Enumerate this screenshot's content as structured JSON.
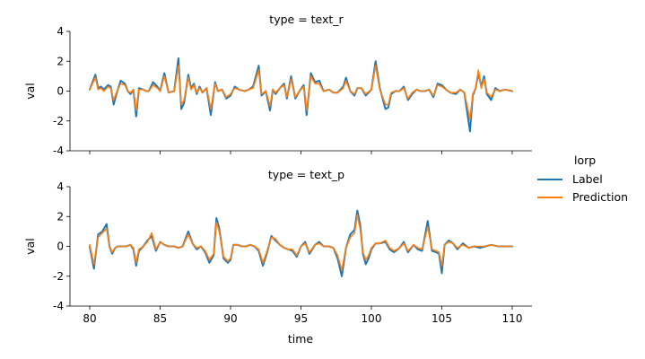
{
  "chart_data": {
    "type": "line",
    "x_range": [
      80,
      110
    ],
    "xlabel": "time",
    "ylabel": "val",
    "ylim": [
      -4,
      4
    ],
    "yticks": [
      -4,
      -2,
      0,
      2,
      4
    ],
    "xticks": [
      80,
      85,
      90,
      95,
      100,
      105,
      110
    ],
    "legend": {
      "title": "lorp",
      "placement": "right",
      "entries": [
        {
          "name": "Label",
          "color": "#1f77b4"
        },
        {
          "name": "Prediction",
          "color": "#ff7f0e"
        }
      ]
    },
    "panels": [
      {
        "title": "type = text_r",
        "series": [
          {
            "name": "Label",
            "color": "#1f77b4",
            "x": [
              80,
              80.4,
              80.6,
              80.8,
              81,
              81.3,
              81.5,
              81.7,
              81.9,
              82.2,
              82.5,
              82.7,
              82.9,
              83.1,
              83.3,
              83.5,
              83.8,
              84,
              84.2,
              84.5,
              84.8,
              85,
              85.3,
              85.6,
              86,
              86.3,
              86.5,
              86.7,
              87,
              87.2,
              87.4,
              87.6,
              87.8,
              88,
              88.3,
              88.6,
              88.9,
              89.1,
              89.4,
              89.7,
              90,
              90.3,
              90.6,
              91,
              91.3,
              91.6,
              92,
              92.2,
              92.5,
              92.8,
              93,
              93.2,
              93.5,
              93.8,
              94,
              94.3,
              94.6,
              94.9,
              95.2,
              95.4,
              95.7,
              96,
              96.3,
              96.6,
              97,
              97.3,
              97.6,
              98,
              98.2,
              98.5,
              98.8,
              99,
              99.3,
              99.6,
              100,
              100.3,
              100.6,
              101,
              101.2,
              101.4,
              101.7,
              102,
              102.3,
              102.6,
              102.9,
              103.2,
              103.5,
              103.8,
              104.1,
              104.4,
              104.7,
              105,
              105.3,
              105.6,
              106,
              106.3,
              106.6,
              107,
              107.2,
              107.4,
              107.6,
              107.8,
              108,
              108.2,
              108.5,
              108.8,
              109.1,
              109.5,
              110
            ],
            "y": [
              0.1,
              1.1,
              0.2,
              0.3,
              0.1,
              0.4,
              0.3,
              -0.9,
              -0.2,
              0.7,
              0.5,
              0,
              -0.2,
              0.1,
              -1.7,
              0.2,
              0.1,
              0,
              0,
              0.6,
              0.3,
              0,
              1.2,
              -0.1,
              0,
              2.2,
              -1.2,
              -0.8,
              1.1,
              0.2,
              0.5,
              -0.2,
              0.3,
              -0.1,
              0.2,
              -1.6,
              0.6,
              0,
              0.1,
              -0.5,
              -0.3,
              0.3,
              0.1,
              0,
              0.1,
              0.3,
              1.7,
              -0.3,
              0,
              -1.3,
              0.1,
              -0.2,
              0.2,
              0.5,
              -0.5,
              1,
              -0.5,
              0,
              0.4,
              -1.6,
              1.2,
              0.6,
              0.7,
              0,
              0.1,
              -0.1,
              -0.1,
              0.3,
              0.9,
              0,
              -0.3,
              0.2,
              0.2,
              -0.3,
              0.1,
              2,
              0.2,
              -1.2,
              -1.1,
              -0.2,
              0,
              0,
              0.3,
              -0.6,
              -0.2,
              0.1,
              0,
              0,
              0.1,
              -0.4,
              0.5,
              0.4,
              0.1,
              -0.1,
              -0.2,
              0.1,
              -0.1,
              -2.7,
              -0.3,
              0.2,
              1.2,
              0.3,
              1,
              -0.2,
              -0.6,
              0.2,
              0,
              0.1,
              0
            ]
          },
          {
            "name": "Prediction",
            "color": "#ff7f0e",
            "x": [
              80,
              80.4,
              80.6,
              80.8,
              81,
              81.3,
              81.5,
              81.7,
              81.9,
              82.2,
              82.5,
              82.7,
              82.9,
              83.1,
              83.3,
              83.5,
              83.8,
              84,
              84.2,
              84.5,
              84.8,
              85,
              85.3,
              85.6,
              86,
              86.3,
              86.5,
              86.7,
              87,
              87.2,
              87.4,
              87.6,
              87.8,
              88,
              88.3,
              88.6,
              88.9,
              89.1,
              89.4,
              89.7,
              90,
              90.3,
              90.6,
              91,
              91.3,
              91.6,
              92,
              92.2,
              92.5,
              92.8,
              93,
              93.2,
              93.5,
              93.8,
              94,
              94.3,
              94.6,
              94.9,
              95.2,
              95.4,
              95.7,
              96,
              96.3,
              96.6,
              97,
              97.3,
              97.6,
              98,
              98.2,
              98.5,
              98.8,
              99,
              99.3,
              99.6,
              100,
              100.3,
              100.6,
              101,
              101.2,
              101.4,
              101.7,
              102,
              102.3,
              102.6,
              102.9,
              103.2,
              103.5,
              103.8,
              104.1,
              104.4,
              104.7,
              105,
              105.3,
              105.6,
              106,
              106.3,
              106.6,
              107,
              107.2,
              107.4,
              107.6,
              107.8,
              108,
              108.2,
              108.5,
              108.8,
              109.1,
              109.5,
              110
            ],
            "y": [
              0.1,
              0.9,
              0.1,
              0.2,
              0,
              0.3,
              0.2,
              -0.6,
              -0.1,
              0.5,
              0.4,
              0,
              -0.1,
              0.1,
              -1.3,
              0.1,
              0.1,
              0,
              0,
              0.4,
              0.2,
              0,
              1,
              -0.1,
              0,
              1.7,
              -0.9,
              -0.6,
              0.9,
              0.1,
              0.4,
              -0.1,
              0.2,
              -0.1,
              0.2,
              -1.2,
              0.5,
              0,
              0.1,
              -0.4,
              -0.2,
              0.2,
              0.1,
              0,
              0.1,
              0.2,
              1.4,
              -0.2,
              0,
              -1,
              0.1,
              -0.1,
              0.2,
              0.4,
              -0.4,
              0.8,
              -0.4,
              0,
              0.3,
              -1.3,
              1,
              0.5,
              0.5,
              0,
              0.1,
              -0.1,
              -0.1,
              0.2,
              0.7,
              0,
              -0.2,
              0.2,
              0.2,
              -0.2,
              0.1,
              1.7,
              0.1,
              -0.9,
              -0.9,
              -0.1,
              0,
              0,
              0.2,
              -0.5,
              -0.1,
              0.1,
              0,
              0,
              0.1,
              -0.3,
              0.4,
              0.3,
              0.1,
              -0.1,
              -0.1,
              0.1,
              -0.1,
              -1.9,
              -0.2,
              0.2,
              1.4,
              0.2,
              0.8,
              -0.1,
              -0.4,
              0.1,
              0,
              0.1,
              0
            ]
          }
        ]
      },
      {
        "title": "type = text_p",
        "series": [
          {
            "name": "Label",
            "color": "#1f77b4",
            "x": [
              80,
              80.3,
              80.6,
              80.9,
              81.2,
              81.4,
              81.6,
              81.8,
              82,
              82.3,
              82.6,
              82.9,
              83.1,
              83.3,
              83.5,
              83.8,
              84.1,
              84.4,
              84.7,
              85,
              85.3,
              85.6,
              86,
              86.3,
              86.6,
              87,
              87.3,
              87.6,
              87.9,
              88.2,
              88.5,
              88.8,
              89,
              89.2,
              89.5,
              89.8,
              90,
              90.2,
              90.5,
              90.8,
              91.1,
              91.4,
              91.7,
              92,
              92.3,
              92.6,
              92.9,
              93.2,
              93.5,
              93.8,
              94.1,
              94.4,
              94.7,
              95,
              95.3,
              95.6,
              96,
              96.3,
              96.6,
              97,
              97.3,
              97.6,
              97.9,
              98.2,
              98.5,
              98.8,
              99,
              99.2,
              99.4,
              99.6,
              99.8,
              100,
              100.3,
              100.6,
              101,
              101.3,
              101.6,
              102,
              102.3,
              102.6,
              103,
              103.3,
              103.6,
              104,
              104.3,
              104.6,
              104.8,
              105,
              105.2,
              105.5,
              105.8,
              106.1,
              106.5,
              106.9,
              107.3,
              107.7,
              108.1,
              108.5,
              109,
              109.5,
              110
            ],
            "y": [
              0,
              -1.5,
              0.8,
              1,
              1.5,
              0,
              -0.5,
              -0.1,
              0,
              0,
              0,
              0.1,
              -0.2,
              -1.3,
              -0.3,
              0,
              0.4,
              0.7,
              -0.3,
              0.3,
              0.1,
              0,
              0,
              -0.1,
              0,
              1,
              0.2,
              -0.2,
              0,
              -0.4,
              -1.1,
              -0.6,
              1.9,
              1.2,
              -0.8,
              -1.1,
              -0.9,
              0.1,
              0.1,
              0,
              0,
              0.1,
              0,
              -0.3,
              -1.3,
              -0.4,
              0.7,
              0.4,
              0.1,
              -0.1,
              -0.2,
              -0.3,
              -0.7,
              0,
              0.3,
              -0.5,
              0.1,
              0.3,
              0,
              0,
              -0.1,
              -0.8,
              -2,
              -0.1,
              0.8,
              1.1,
              2.4,
              1.5,
              -0.5,
              -1.2,
              -0.8,
              -0.2,
              0.2,
              0.2,
              0.3,
              -0.2,
              -0.4,
              -0.1,
              0.3,
              -0.4,
              0.1,
              -0.2,
              -0.3,
              1.7,
              -0.3,
              -0.4,
              -0.5,
              -1.8,
              0.1,
              0.4,
              0.2,
              -0.2,
              0.2,
              -0.1,
              0,
              -0.1,
              0,
              0.1,
              0,
              0,
              0
            ]
          },
          {
            "name": "Prediction",
            "color": "#ff7f0e",
            "x": [
              80,
              80.3,
              80.6,
              80.9,
              81.2,
              81.4,
              81.6,
              81.8,
              82,
              82.3,
              82.6,
              82.9,
              83.1,
              83.3,
              83.5,
              83.8,
              84.1,
              84.4,
              84.7,
              85,
              85.3,
              85.6,
              86,
              86.3,
              86.6,
              87,
              87.3,
              87.6,
              87.9,
              88.2,
              88.5,
              88.8,
              89,
              89.2,
              89.5,
              89.8,
              90,
              90.2,
              90.5,
              90.8,
              91.1,
              91.4,
              91.7,
              92,
              92.3,
              92.6,
              92.9,
              93.2,
              93.5,
              93.8,
              94.1,
              94.4,
              94.7,
              95,
              95.3,
              95.6,
              96,
              96.3,
              96.6,
              97,
              97.3,
              97.6,
              97.9,
              98.2,
              98.5,
              98.8,
              99,
              99.2,
              99.4,
              99.6,
              99.8,
              100,
              100.3,
              100.6,
              101,
              101.3,
              101.6,
              102,
              102.3,
              102.6,
              103,
              103.3,
              103.6,
              104,
              104.3,
              104.6,
              104.8,
              105,
              105.2,
              105.5,
              105.8,
              106.1,
              106.5,
              106.9,
              107.3,
              107.7,
              108.1,
              108.5,
              109,
              109.5,
              110
            ],
            "y": [
              0.1,
              -1.2,
              0.6,
              0.9,
              1.2,
              0,
              -0.4,
              -0.1,
              0,
              0,
              0,
              0.1,
              -0.1,
              -1.1,
              -0.2,
              0,
              0.3,
              0.9,
              -0.2,
              0.3,
              0.1,
              0,
              0,
              -0.1,
              0,
              0.8,
              0.2,
              -0.1,
              0,
              -0.3,
              -0.9,
              -0.5,
              1.6,
              1,
              -0.7,
              -1,
              -0.8,
              0.1,
              0.1,
              0,
              0,
              0.1,
              0,
              -0.2,
              -1.1,
              -0.3,
              0.6,
              0.5,
              0.1,
              -0.1,
              -0.2,
              -0.2,
              -0.6,
              0,
              0.2,
              -0.4,
              0.1,
              0.2,
              0,
              0,
              -0.1,
              -0.6,
              -1.6,
              -0.1,
              0.6,
              0.9,
              2.1,
              1.2,
              -0.4,
              -0.9,
              -0.6,
              -0.1,
              0.2,
              0.2,
              0.4,
              -0.1,
              -0.3,
              -0.1,
              0.2,
              -0.3,
              0.1,
              -0.1,
              -0.2,
              1.3,
              -0.2,
              -0.3,
              -0.4,
              -1.3,
              0.1,
              0.3,
              0.2,
              -0.1,
              0.1,
              -0.1,
              0,
              0,
              0,
              0.1,
              0,
              0,
              0
            ]
          }
        ]
      }
    ]
  }
}
